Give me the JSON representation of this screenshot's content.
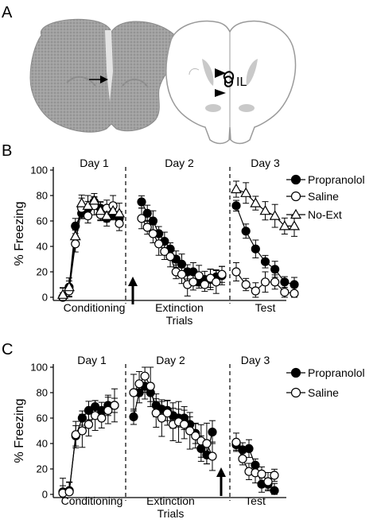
{
  "panels": {
    "a": {
      "letter": "A",
      "il_label": "IL"
    },
    "b": {
      "letter": "B"
    },
    "c": {
      "letter": "C"
    }
  },
  "chart_data": [
    {
      "type": "line",
      "panel": "B",
      "ylabel": "% Freezing",
      "ylim": [
        0,
        100
      ],
      "yticks": [
        0,
        20,
        40,
        60,
        80,
        100
      ],
      "days": [
        "Day 1",
        "Day 2",
        "Day 3"
      ],
      "phases": [
        "Conditioning",
        "Extinction\nTrials",
        "Test"
      ],
      "legend": [
        "Propranolol",
        "Saline",
        "No-Ext"
      ],
      "arrow_phase": "Day 2",
      "series": [
        {
          "name": "Propranolol",
          "marker": "filled-circle",
          "segments": [
            [
              [
                1,
                0
              ],
              [
                2,
                8
              ],
              [
                3,
                56
              ],
              [
                4,
                66
              ],
              [
                5,
                70
              ],
              [
                6,
                75
              ],
              [
                7,
                70
              ],
              [
                8,
                62
              ],
              [
                9,
                65
              ],
              [
                10,
                62
              ]
            ],
            [
              [
                1,
                75
              ],
              [
                2,
                66
              ],
              [
                3,
                60
              ],
              [
                4,
                50
              ],
              [
                5,
                44
              ],
              [
                6,
                38
              ],
              [
                7,
                30
              ],
              [
                8,
                26
              ],
              [
                9,
                20
              ],
              [
                10,
                20
              ],
              [
                11,
                12
              ],
              [
                12,
                14
              ],
              [
                13,
                14
              ],
              [
                14,
                16
              ],
              [
                15,
                17
              ]
            ],
            [
              [
                1,
                72
              ],
              [
                2,
                52
              ],
              [
                3,
                38
              ],
              [
                4,
                28
              ],
              [
                5,
                22
              ],
              [
                6,
                12
              ],
              [
                7,
                10
              ]
            ]
          ]
        },
        {
          "name": "Saline",
          "marker": "open-circle",
          "segments": [
            [
              [
                1,
                0
              ],
              [
                2,
                5
              ],
              [
                3,
                42
              ],
              [
                4,
                70
              ],
              [
                5,
                64
              ],
              [
                6,
                72
              ],
              [
                7,
                65
              ],
              [
                8,
                70
              ],
              [
                9,
                72
              ],
              [
                10,
                58
              ]
            ],
            [
              [
                1,
                62
              ],
              [
                2,
                55
              ],
              [
                3,
                50
              ],
              [
                4,
                42
              ],
              [
                5,
                36
              ],
              [
                6,
                32
              ],
              [
                7,
                20
              ],
              [
                8,
                18
              ],
              [
                9,
                10
              ],
              [
                10,
                12
              ],
              [
                11,
                17
              ],
              [
                12,
                10
              ],
              [
                13,
                15
              ],
              [
                14,
                12
              ],
              [
                15,
                18
              ]
            ],
            [
              [
                1,
                20
              ],
              [
                2,
                10
              ],
              [
                3,
                5
              ],
              [
                4,
                12
              ],
              [
                5,
                12
              ],
              [
                6,
                4
              ],
              [
                7,
                3
              ]
            ]
          ]
        },
        {
          "name": "No-Ext",
          "marker": "open-triangle",
          "segments": [
            [
              [
                1,
                2
              ],
              [
                2,
                8
              ],
              [
                3,
                48
              ],
              [
                4,
                74
              ],
              [
                5,
                72
              ],
              [
                6,
                76
              ],
              [
                7,
                68
              ],
              [
                8,
                64
              ],
              [
                9,
                68
              ],
              [
                10,
                66
              ]
            ],
            [],
            [
              [
                1,
                85
              ],
              [
                2,
                82
              ],
              [
                3,
                74
              ],
              [
                4,
                68
              ],
              [
                5,
                64
              ],
              [
                6,
                56
              ],
              [
                7,
                56
              ]
            ]
          ]
        }
      ]
    },
    {
      "type": "line",
      "panel": "C",
      "ylabel": "% Freezing",
      "ylim": [
        0,
        100
      ],
      "yticks": [
        0,
        20,
        40,
        60,
        80,
        100
      ],
      "days": [
        "Day 1",
        "Day 2",
        "Day 3"
      ],
      "phases": [
        "Conditioning",
        "Extinction\nTrials",
        "Test"
      ],
      "legend": [
        "Propranolol",
        "Saline"
      ],
      "arrow_phase": "Day 2 end",
      "series": [
        {
          "name": "Propranolol",
          "marker": "filled-circle",
          "segments": [
            [
              [
                1,
                2
              ],
              [
                2,
                3
              ],
              [
                3,
                46
              ],
              [
                4,
                60
              ],
              [
                5,
                66
              ],
              [
                6,
                69
              ],
              [
                7,
                66
              ],
              [
                8,
                70
              ],
              [
                9,
                70
              ]
            ],
            [
              [
                1,
                61
              ],
              [
                2,
                80
              ],
              [
                3,
                85
              ],
              [
                4,
                80
              ],
              [
                5,
                70
              ],
              [
                6,
                67
              ],
              [
                7,
                66
              ],
              [
                8,
                62
              ],
              [
                9,
                60
              ],
              [
                10,
                60
              ],
              [
                11,
                55
              ],
              [
                12,
                48
              ],
              [
                13,
                36
              ],
              [
                14,
                31
              ],
              [
                15,
                49
              ]
            ],
            [
              [
                1,
                39
              ],
              [
                2,
                35
              ],
              [
                3,
                36
              ],
              [
                4,
                23
              ],
              [
                5,
                8
              ],
              [
                6,
                8
              ],
              [
                7,
                3
              ]
            ]
          ]
        },
        {
          "name": "Saline",
          "marker": "open-circle",
          "segments": [
            [
              [
                1,
                1
              ],
              [
                2,
                2
              ],
              [
                3,
                47
              ],
              [
                4,
                50
              ],
              [
                5,
                55
              ],
              [
                6,
                62
              ],
              [
                7,
                60
              ],
              [
                8,
                66
              ],
              [
                9,
                70
              ]
            ],
            [
              [
                1,
                80
              ],
              [
                2,
                87
              ],
              [
                3,
                93
              ],
              [
                4,
                85
              ],
              [
                5,
                64
              ],
              [
                6,
                60
              ],
              [
                7,
                64
              ],
              [
                8,
                55
              ],
              [
                9,
                57
              ],
              [
                10,
                55
              ],
              [
                11,
                50
              ],
              [
                12,
                46
              ],
              [
                13,
                42
              ],
              [
                14,
                40
              ],
              [
                15,
                30
              ]
            ],
            [
              [
                1,
                41
              ],
              [
                2,
                28
              ],
              [
                3,
                18
              ],
              [
                4,
                17
              ],
              [
                5,
                16
              ],
              [
                6,
                10
              ],
              [
                7,
                15
              ]
            ]
          ]
        }
      ]
    }
  ]
}
